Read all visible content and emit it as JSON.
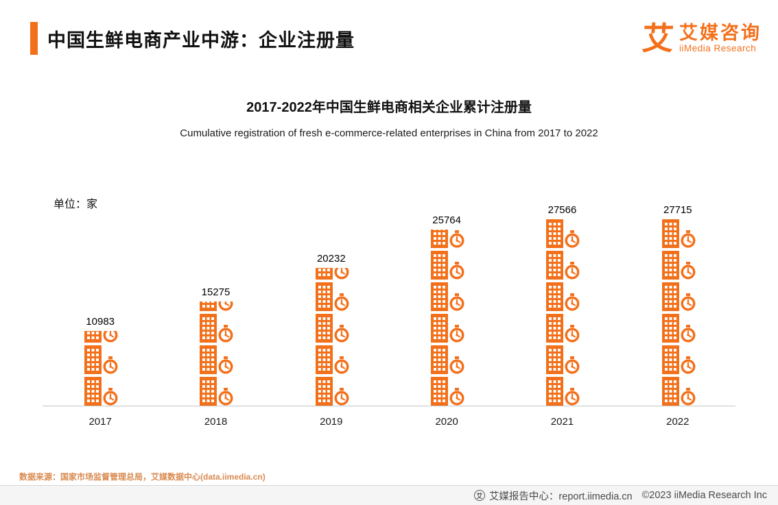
{
  "header": {
    "title": "中国生鲜电商产业中游：企业注册量",
    "logo": {
      "glyph": "艾",
      "brand_cn": "艾媒咨询",
      "brand_en": "iiMedia Research"
    }
  },
  "chart": {
    "title": "2017-2022年中国生鲜电商相关企业累计注册量",
    "subtitle": "Cumulative registration of fresh e-commerce-related enterprises in China from 2017 to 2022",
    "unit_label": "单位：家"
  },
  "chart_data": {
    "type": "bar",
    "variant": "pictogram",
    "title": "2017-2022年中国生鲜电商相关企业累计注册量",
    "subtitle": "Cumulative registration of fresh e-commerce-related enterprises in China from 2017 to 2022",
    "categories": [
      "2017",
      "2018",
      "2019",
      "2020",
      "2021",
      "2022"
    ],
    "values": [
      10983,
      15275,
      20232,
      25764,
      27566,
      27715
    ],
    "xlabel": "",
    "ylabel": "单位：家",
    "ylim": [
      0,
      27715
    ],
    "max_icons": 6,
    "icon": "building-with-clock",
    "accent_color": "#F3701B",
    "grid": false,
    "legend": false
  },
  "footer": {
    "source": "数据来源：国家市场监督管理总局，艾媒数据中心(data.iimedia.cn)",
    "bottom_bar": {
      "report_center": "艾媒报告中心：report.iimedia.cn",
      "copyright": "©2023   iiMedia Research  Inc"
    }
  }
}
